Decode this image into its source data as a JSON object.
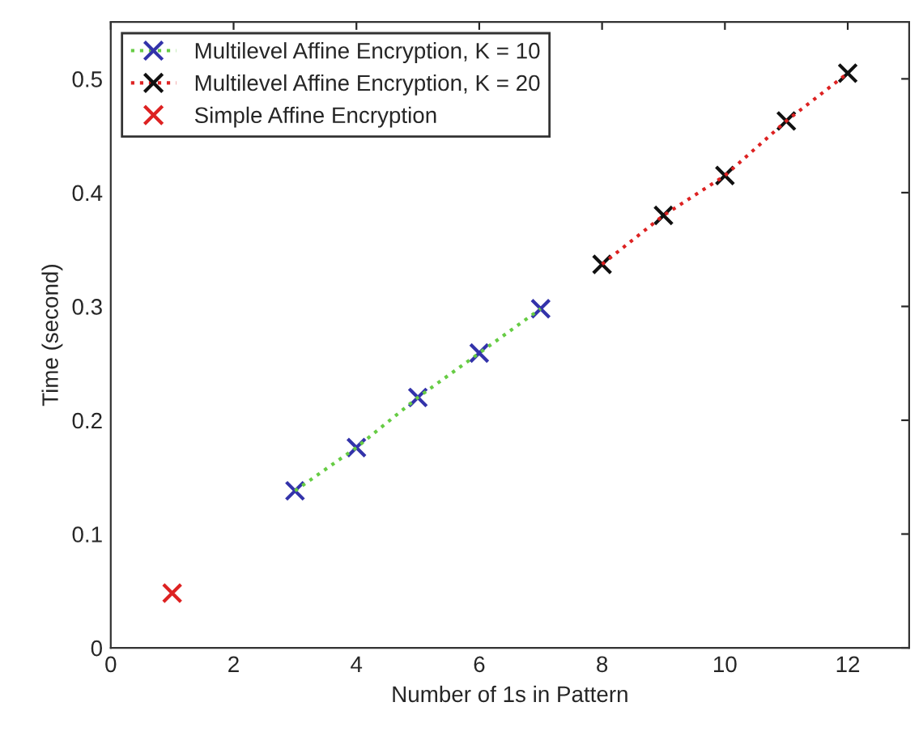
{
  "chart_data": {
    "type": "scatter",
    "xlabel": "Number of 1s in Pattern",
    "ylabel": "Time (second)",
    "xlim": [
      0,
      13
    ],
    "ylim": [
      0,
      0.55
    ],
    "xticks": [
      0,
      2,
      4,
      6,
      8,
      10,
      12
    ],
    "yticks": [
      0,
      0.1,
      0.2,
      0.3,
      0.4,
      0.5
    ],
    "grid": false,
    "legend": "top left",
    "marker": "cross",
    "series": [
      {
        "type": "line",
        "color": "#66cc44",
        "line_style": "dotted",
        "marker": "none",
        "x": [
          3,
          4,
          5,
          6,
          7
        ],
        "values": [
          0.138,
          0.176,
          0.22,
          0.259,
          0.298
        ]
      },
      {
        "name": "Multilevel Affine Encryption, K = 10",
        "color": "#3333aa",
        "x": [
          3,
          4,
          5,
          6,
          7
        ],
        "values": [
          0.138,
          0.176,
          0.22,
          0.259,
          0.298
        ]
      },
      {
        "type": "line",
        "color": "#dd2222",
        "line_style": "dotted",
        "marker": "none",
        "x": [
          8,
          9,
          10,
          11,
          12
        ],
        "values": [
          0.337,
          0.38,
          0.415,
          0.463,
          0.505
        ]
      },
      {
        "name": "Multilevel Affine Encryption, K = 20",
        "color": "#111111",
        "x": [
          8,
          9,
          10,
          11,
          12
        ],
        "values": [
          0.337,
          0.38,
          0.415,
          0.463,
          0.505
        ]
      },
      {
        "name": "Simple Affine Encryption",
        "color": "#dd2222",
        "x": [
          1
        ],
        "values": [
          0.048
        ]
      }
    ]
  }
}
